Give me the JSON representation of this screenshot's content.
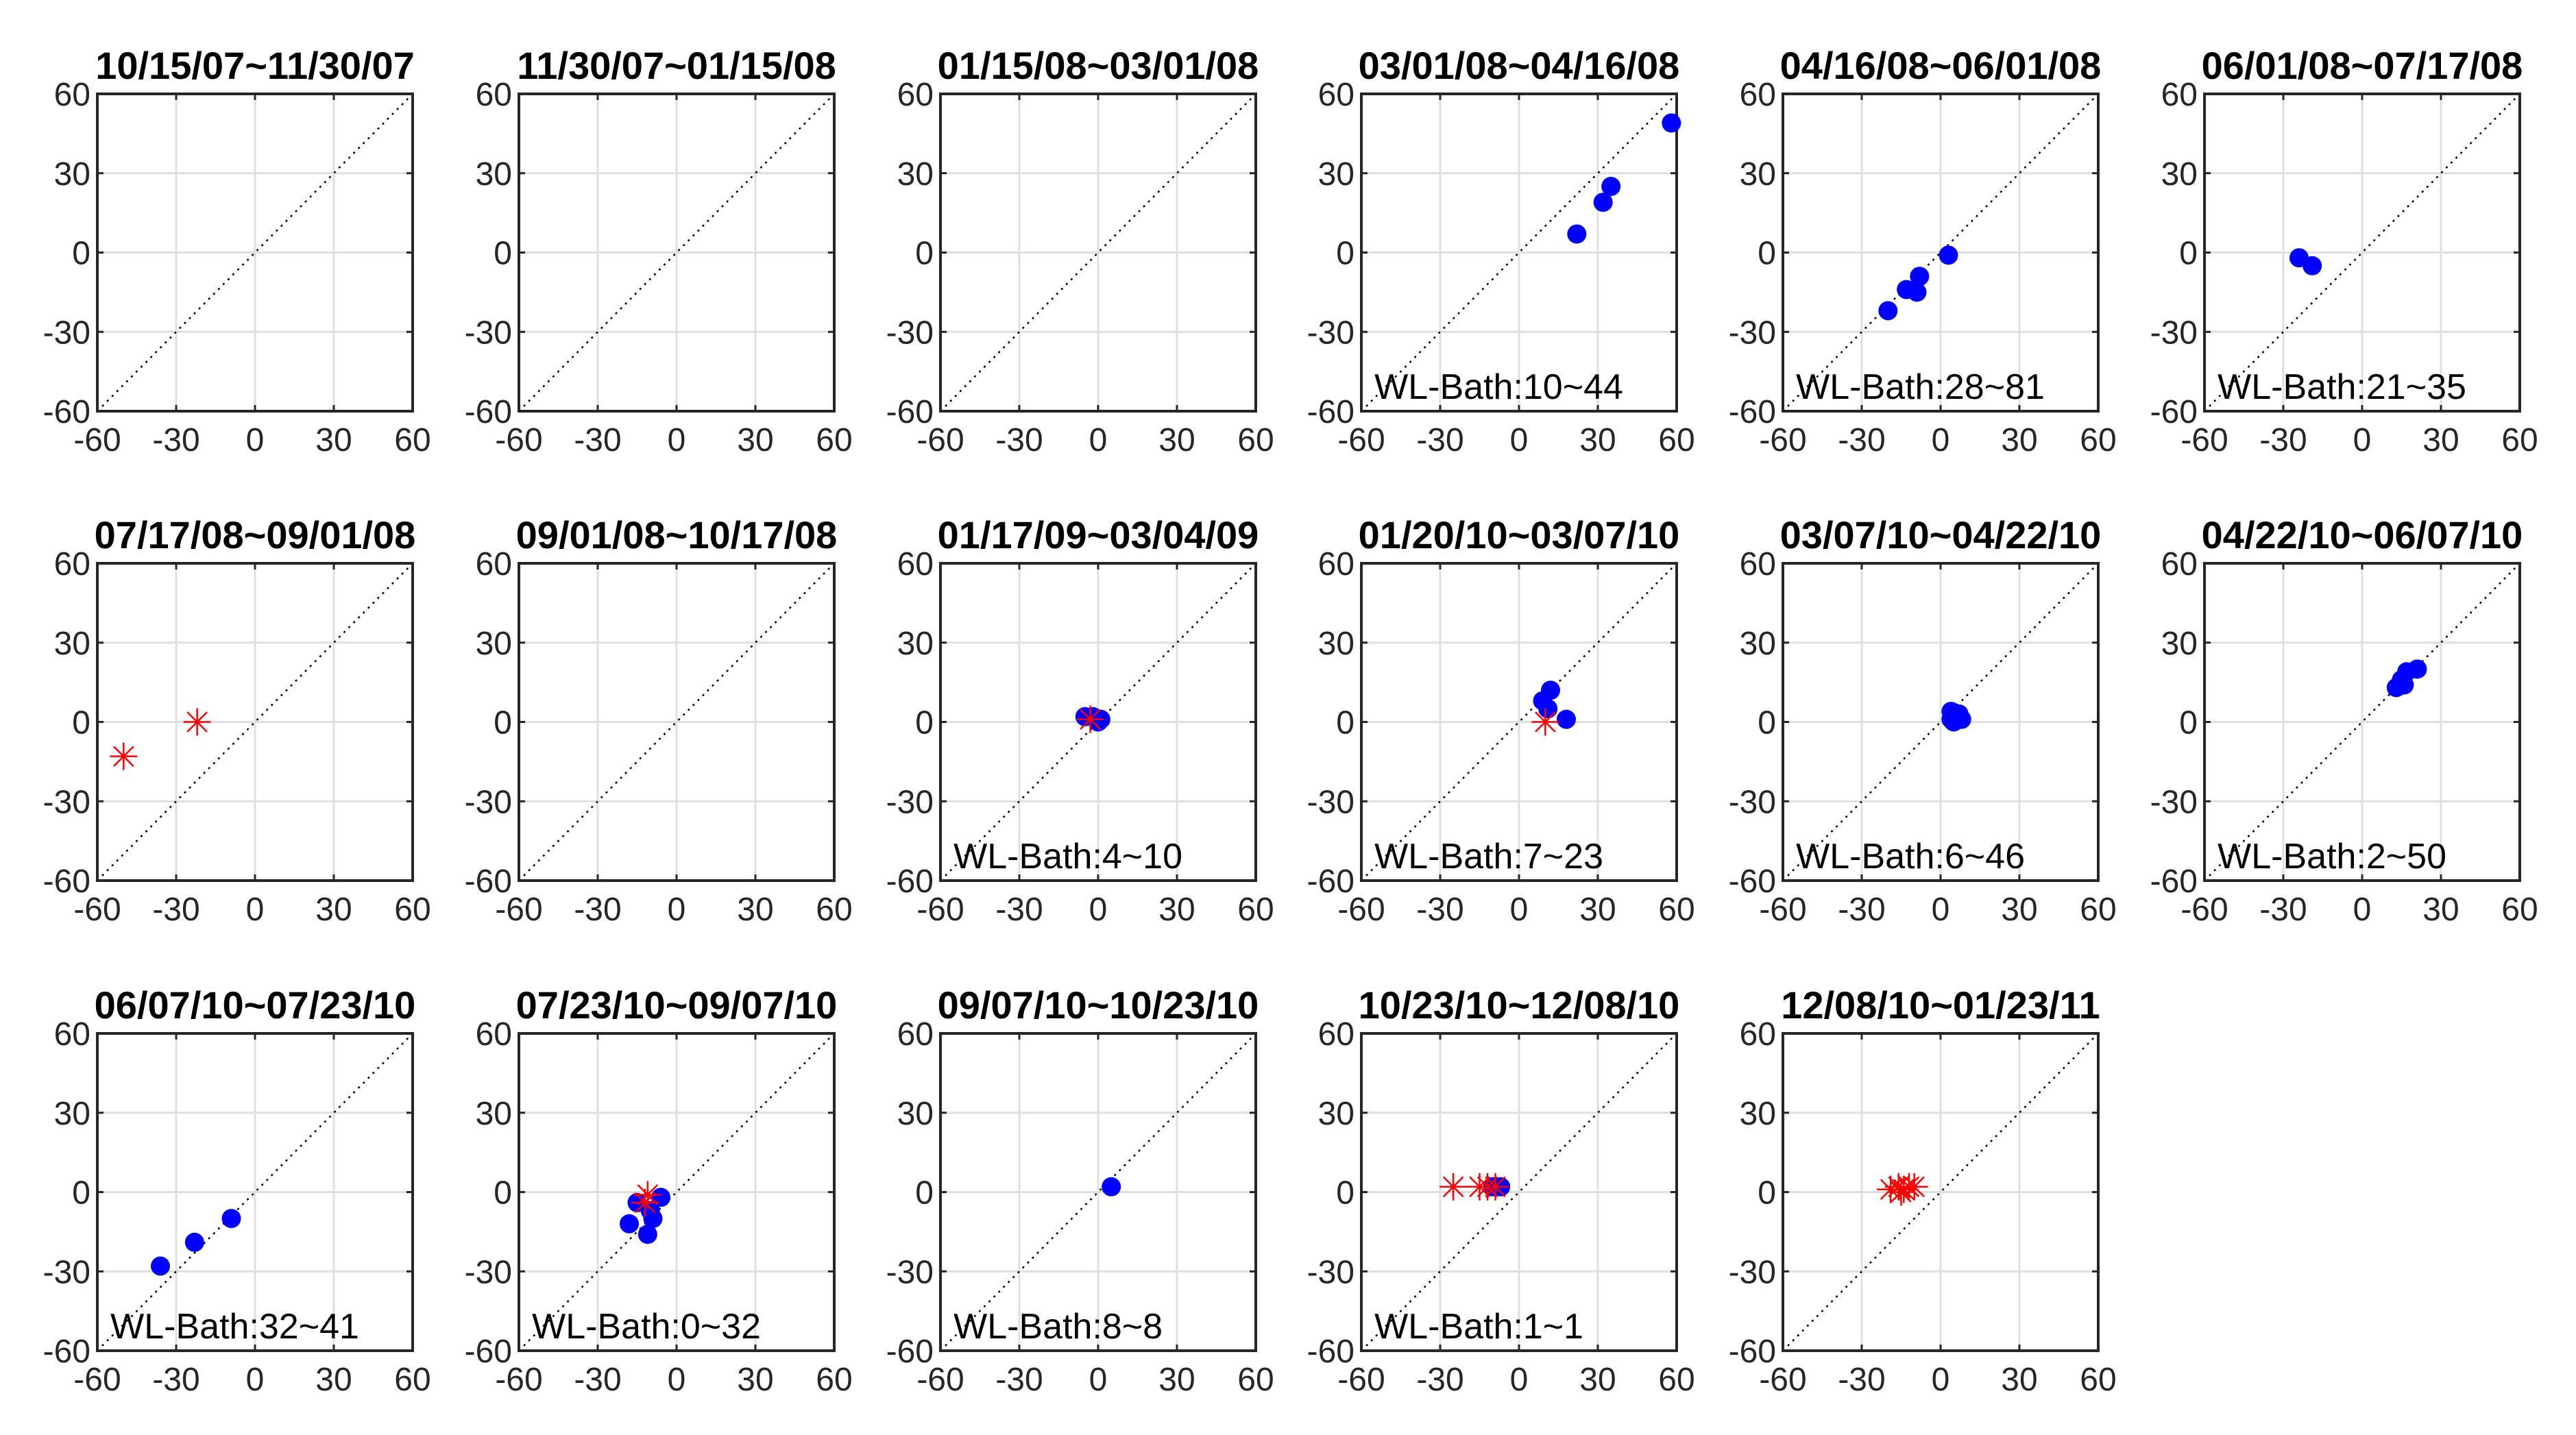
{
  "chart_data": [
    {
      "type": "scatter",
      "title": "10/15/07~11/30/07",
      "xlim": [
        -60,
        60
      ],
      "ylim": [
        -60,
        60
      ],
      "xticks": [
        "-60",
        "-30",
        "0",
        "30",
        "60"
      ],
      "yticks": [
        "-60",
        "-30",
        "0",
        "30",
        "60"
      ],
      "grid": true,
      "annotation": "",
      "blue_points": [],
      "red_points": []
    },
    {
      "type": "scatter",
      "title": "11/30/07~01/15/08",
      "xlim": [
        -60,
        60
      ],
      "ylim": [
        -60,
        60
      ],
      "xticks": [
        "-60",
        "-30",
        "0",
        "30",
        "60"
      ],
      "yticks": [
        "-60",
        "-30",
        "0",
        "30",
        "60"
      ],
      "grid": true,
      "annotation": "",
      "blue_points": [],
      "red_points": []
    },
    {
      "type": "scatter",
      "title": "01/15/08~03/01/08",
      "xlim": [
        -60,
        60
      ],
      "ylim": [
        -60,
        60
      ],
      "xticks": [
        "-60",
        "-30",
        "0",
        "30",
        "60"
      ],
      "yticks": [
        "-60",
        "-30",
        "0",
        "30",
        "60"
      ],
      "grid": true,
      "annotation": "",
      "blue_points": [],
      "red_points": []
    },
    {
      "type": "scatter",
      "title": "03/01/08~04/16/08",
      "xlim": [
        -60,
        60
      ],
      "ylim": [
        -60,
        60
      ],
      "xticks": [
        "-60",
        "-30",
        "0",
        "30",
        "60"
      ],
      "yticks": [
        "-60",
        "-30",
        "0",
        "30",
        "60"
      ],
      "grid": true,
      "annotation": "WL-Bath:10~44",
      "blue_points": [
        [
          22,
          7
        ],
        [
          32,
          19
        ],
        [
          35,
          25
        ],
        [
          58,
          49
        ]
      ],
      "red_points": []
    },
    {
      "type": "scatter",
      "title": "04/16/08~06/01/08",
      "xlim": [
        -60,
        60
      ],
      "ylim": [
        -60,
        60
      ],
      "xticks": [
        "-60",
        "-30",
        "0",
        "30",
        "60"
      ],
      "yticks": [
        "-60",
        "-30",
        "0",
        "30",
        "60"
      ],
      "grid": true,
      "annotation": "WL-Bath:28~81",
      "blue_points": [
        [
          -20,
          -22
        ],
        [
          -13,
          -14
        ],
        [
          -9,
          -15
        ],
        [
          -8,
          -9
        ],
        [
          3,
          -1
        ]
      ],
      "red_points": []
    },
    {
      "type": "scatter",
      "title": "06/01/08~07/17/08",
      "xlim": [
        -60,
        60
      ],
      "ylim": [
        -60,
        60
      ],
      "xticks": [
        "-60",
        "-30",
        "0",
        "30",
        "60"
      ],
      "yticks": [
        "-60",
        "-30",
        "0",
        "30",
        "60"
      ],
      "grid": true,
      "annotation": "WL-Bath:21~35",
      "blue_points": [
        [
          -24,
          -2
        ],
        [
          -19,
          -5
        ]
      ],
      "red_points": []
    },
    {
      "type": "scatter",
      "title": "07/17/08~09/01/08",
      "xlim": [
        -60,
        60
      ],
      "ylim": [
        -60,
        60
      ],
      "xticks": [
        "-60",
        "-30",
        "0",
        "30",
        "60"
      ],
      "yticks": [
        "-60",
        "-30",
        "0",
        "30",
        "60"
      ],
      "grid": true,
      "annotation": "",
      "blue_points": [],
      "red_points": [
        [
          -50,
          -13
        ],
        [
          -22,
          0
        ]
      ]
    },
    {
      "type": "scatter",
      "title": "09/01/08~10/17/08",
      "xlim": [
        -60,
        60
      ],
      "ylim": [
        -60,
        60
      ],
      "xticks": [
        "-60",
        "-30",
        "0",
        "30",
        "60"
      ],
      "yticks": [
        "-60",
        "-30",
        "0",
        "30",
        "60"
      ],
      "grid": true,
      "annotation": "",
      "blue_points": [],
      "red_points": []
    },
    {
      "type": "scatter",
      "title": "01/17/09~03/04/09",
      "xlim": [
        -60,
        60
      ],
      "ylim": [
        -60,
        60
      ],
      "xticks": [
        "-60",
        "-30",
        "0",
        "30",
        "60"
      ],
      "yticks": [
        "-60",
        "-30",
        "0",
        "30",
        "60"
      ],
      "grid": true,
      "annotation": "WL-Bath:4~10",
      "blue_points": [
        [
          -5,
          2
        ],
        [
          -2,
          2
        ],
        [
          1,
          1
        ],
        [
          0,
          0
        ]
      ],
      "red_points": [
        [
          -3,
          1
        ]
      ]
    },
    {
      "type": "scatter",
      "title": "01/20/10~03/07/10",
      "xlim": [
        -60,
        60
      ],
      "ylim": [
        -60,
        60
      ],
      "xticks": [
        "-60",
        "-30",
        "0",
        "30",
        "60"
      ],
      "yticks": [
        "-60",
        "-30",
        "0",
        "30",
        "60"
      ],
      "grid": true,
      "annotation": "WL-Bath:7~23",
      "blue_points": [
        [
          9,
          8
        ],
        [
          12,
          12
        ],
        [
          18,
          1
        ],
        [
          11,
          5
        ]
      ],
      "red_points": [
        [
          10,
          0
        ]
      ]
    },
    {
      "type": "scatter",
      "title": "03/07/10~04/22/10",
      "xlim": [
        -60,
        60
      ],
      "ylim": [
        -60,
        60
      ],
      "xticks": [
        "-60",
        "-30",
        "0",
        "30",
        "60"
      ],
      "yticks": [
        "-60",
        "-30",
        "0",
        "30",
        "60"
      ],
      "grid": true,
      "annotation": "WL-Bath:6~46",
      "blue_points": [
        [
          4,
          4
        ],
        [
          6,
          2
        ],
        [
          8,
          1
        ],
        [
          5,
          0
        ],
        [
          7,
          3
        ],
        [
          4,
          1
        ]
      ],
      "red_points": []
    },
    {
      "type": "scatter",
      "title": "04/22/10~06/07/10",
      "xlim": [
        -60,
        60
      ],
      "ylim": [
        -60,
        60
      ],
      "xticks": [
        "-60",
        "-30",
        "0",
        "30",
        "60"
      ],
      "yticks": [
        "-60",
        "-30",
        "0",
        "30",
        "60"
      ],
      "grid": true,
      "annotation": "WL-Bath:2~50",
      "blue_points": [
        [
          13,
          13
        ],
        [
          15,
          16
        ],
        [
          17,
          19
        ],
        [
          21,
          20
        ],
        [
          16,
          14
        ]
      ],
      "red_points": []
    },
    {
      "type": "scatter",
      "title": "06/07/10~07/23/10",
      "xlim": [
        -60,
        60
      ],
      "ylim": [
        -60,
        60
      ],
      "xticks": [
        "-60",
        "-30",
        "0",
        "30",
        "60"
      ],
      "yticks": [
        "-60",
        "-30",
        "0",
        "30",
        "60"
      ],
      "grid": true,
      "annotation": "WL-Bath:32~41",
      "blue_points": [
        [
          -36,
          -28
        ],
        [
          -23,
          -19
        ],
        [
          -9,
          -10
        ]
      ],
      "red_points": []
    },
    {
      "type": "scatter",
      "title": "07/23/10~09/07/10",
      "xlim": [
        -60,
        60
      ],
      "ylim": [
        -60,
        60
      ],
      "xticks": [
        "-60",
        "-30",
        "0",
        "30",
        "60"
      ],
      "yticks": [
        "-60",
        "-30",
        "0",
        "30",
        "60"
      ],
      "grid": true,
      "annotation": "WL-Bath:0~32",
      "blue_points": [
        [
          -18,
          -12
        ],
        [
          -15,
          -4
        ],
        [
          -11,
          -16
        ],
        [
          -9,
          -10
        ],
        [
          -6,
          -2
        ],
        [
          -10,
          -7
        ]
      ],
      "red_points": [
        [
          -11,
          -1
        ],
        [
          -12,
          -4
        ]
      ]
    },
    {
      "type": "scatter",
      "title": "09/07/10~10/23/10",
      "xlim": [
        -60,
        60
      ],
      "ylim": [
        -60,
        60
      ],
      "xticks": [
        "-60",
        "-30",
        "0",
        "30",
        "60"
      ],
      "yticks": [
        "-60",
        "-30",
        "0",
        "30",
        "60"
      ],
      "grid": true,
      "annotation": "WL-Bath:8~8",
      "blue_points": [
        [
          5,
          2
        ]
      ],
      "red_points": []
    },
    {
      "type": "scatter",
      "title": "10/23/10~12/08/10",
      "xlim": [
        -60,
        60
      ],
      "ylim": [
        -60,
        60
      ],
      "xticks": [
        "-60",
        "-30",
        "0",
        "30",
        "60"
      ],
      "yticks": [
        "-60",
        "-30",
        "0",
        "30",
        "60"
      ],
      "grid": true,
      "annotation": "WL-Bath:1~1",
      "blue_points": [
        [
          -10,
          2
        ],
        [
          -7,
          2
        ]
      ],
      "red_points": [
        [
          -25,
          2
        ],
        [
          -15,
          2
        ],
        [
          -12,
          2
        ],
        [
          -9,
          2
        ]
      ]
    },
    {
      "type": "scatter",
      "title": "12/08/10~01/23/11",
      "xlim": [
        -60,
        60
      ],
      "ylim": [
        -60,
        60
      ],
      "xticks": [
        "-60",
        "-30",
        "0",
        "30",
        "60"
      ],
      "yticks": [
        "-60",
        "-30",
        "0",
        "30",
        "60"
      ],
      "grid": true,
      "annotation": "",
      "blue_points": [],
      "red_points": [
        [
          -19,
          1
        ],
        [
          -16,
          2
        ],
        [
          -14,
          1
        ],
        [
          -12,
          2
        ],
        [
          -10,
          2
        ],
        [
          -15,
          0
        ]
      ]
    }
  ],
  "colors": {
    "blue_marker": "#0000ff",
    "red_marker": "#ff0000",
    "axis": "#262626",
    "grid": "#dfdfdf",
    "diagonal": "#000000"
  }
}
